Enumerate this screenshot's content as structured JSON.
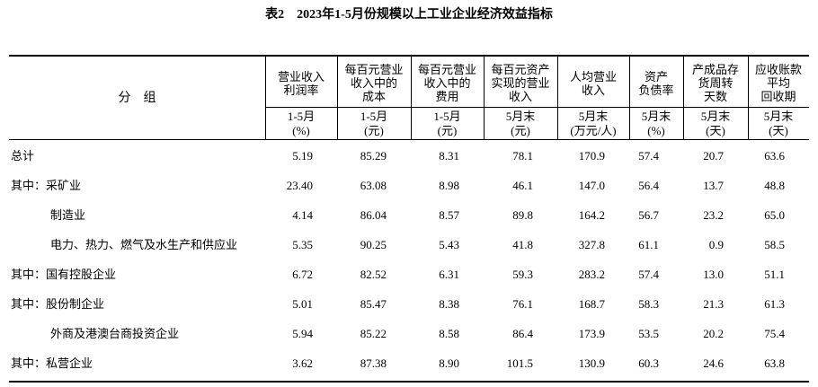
{
  "header": {
    "title": "表2　2023年1-5月份规模以上工业企业经济效益指标"
  },
  "table": {
    "label_header": "分　组",
    "columns": [
      {
        "header": [
          "营业收入",
          "利润率"
        ],
        "unit": [
          "1-5月",
          "(%)"
        ]
      },
      {
        "header": [
          "每百元营业",
          "收入中的",
          "成本"
        ],
        "unit": [
          "1-5月",
          "(元)"
        ]
      },
      {
        "header": [
          "每百元营业",
          "收入中的",
          "费用"
        ],
        "unit": [
          "1-5月",
          "(元)"
        ]
      },
      {
        "header": [
          "每百元资产",
          "实现的营业",
          "收入"
        ],
        "unit": [
          "5月末",
          "(元)"
        ]
      },
      {
        "header": [
          "人均营业",
          "收入"
        ],
        "unit": [
          "5月末",
          "(万元/人)"
        ]
      },
      {
        "header": [
          "资产",
          "负债率"
        ],
        "unit": [
          "5月末",
          "(%)"
        ]
      },
      {
        "header": [
          "产成品存",
          "货周转",
          "天数"
        ],
        "unit": [
          "5月末",
          "(天)"
        ]
      },
      {
        "header": [
          "应收账款",
          "平均",
          "回收期"
        ],
        "unit": [
          "5月末",
          "(天)"
        ]
      }
    ],
    "rows": [
      {
        "label": "总计",
        "values": [
          "5.19",
          "85.29",
          "8.31",
          "78.1",
          "170.9",
          "57.4",
          "20.7",
          "63.6"
        ]
      },
      {
        "label": "其中：采矿业",
        "values": [
          "23.40",
          "63.08",
          "8.98",
          "46.1",
          "147.0",
          "56.4",
          "13.7",
          "48.8"
        ]
      },
      {
        "label": "制造业",
        "values": [
          "4.14",
          "86.04",
          "8.57",
          "89.8",
          "164.2",
          "56.7",
          "23.2",
          "65.0"
        ]
      },
      {
        "label": "电力、热力、燃气及水生产和供应业",
        "values": [
          "5.35",
          "90.25",
          "5.43",
          "41.8",
          "327.8",
          "61.1",
          "0.9",
          "58.5"
        ]
      },
      {
        "label": "其中：国有控股企业",
        "values": [
          "6.72",
          "82.52",
          "6.31",
          "59.3",
          "283.2",
          "57.4",
          "13.0",
          "51.1"
        ]
      },
      {
        "label": "其中：股份制企业",
        "values": [
          "5.01",
          "85.47",
          "8.38",
          "76.1",
          "168.7",
          "58.3",
          "21.3",
          "61.3"
        ]
      },
      {
        "label": "外商及港澳台商投资企业",
        "values": [
          "5.94",
          "85.22",
          "8.58",
          "86.4",
          "173.9",
          "53.5",
          "20.2",
          "75.4"
        ]
      },
      {
        "label": "其中：私营企业",
        "values": [
          "3.62",
          "87.38",
          "8.90",
          "101.5",
          "130.9",
          "60.3",
          "24.6",
          "63.8"
        ]
      }
    ]
  }
}
